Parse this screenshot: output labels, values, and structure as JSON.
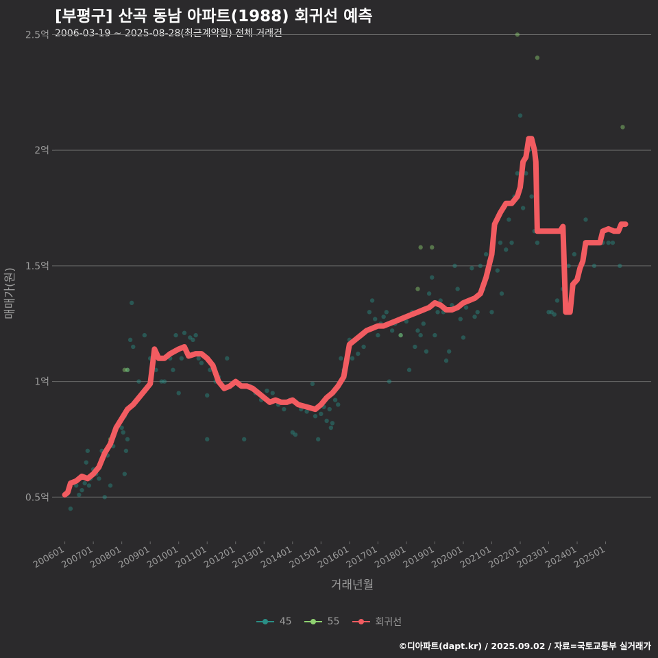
{
  "title": "[부평구] 산곡 동남 아파트(1988) 회귀선 예측",
  "subtitle": "2006-03-19 ~ 2025-08-28(최근계약일) 전체 거래건",
  "caption": "©디아파트(dapt.kr) / 2025.09.02 / 자료=국토교통부 실거래가",
  "colors": {
    "background": "#2b2a2c",
    "grid": "#6a6a6a",
    "s45": "#2a8f86",
    "s55": "#8fd171",
    "regression": "#f25c61"
  },
  "chart_data": {
    "type": "scatter",
    "title": "[부평구] 산곡 동남 아파트(1988) 회귀선 예측",
    "xlabel": "거래년월",
    "ylabel": "매매가(원)",
    "xlim": [
      2005.6,
      2026.6
    ],
    "ylim": [
      0.32,
      2.62
    ],
    "y_ticks": [
      0.5,
      1.0,
      1.5,
      2.0,
      2.5
    ],
    "y_tick_labels": [
      "0.5억",
      "1억",
      "1.5억",
      "2억",
      "2.5억"
    ],
    "x_ticks": [
      2006,
      2007,
      2008,
      2009,
      2010,
      2011,
      2012,
      2013,
      2014,
      2015,
      2016,
      2017,
      2018,
      2019,
      2020,
      2021,
      2022,
      2023,
      2024,
      2025
    ],
    "x_tick_labels": [
      "200601",
      "200701",
      "200801",
      "200901",
      "201001",
      "201101",
      "201201",
      "201301",
      "201401",
      "201501",
      "201601",
      "201701",
      "201801",
      "201901",
      "202001",
      "202101",
      "202201",
      "202301",
      "202401",
      "202501"
    ],
    "legend": [
      {
        "name": "45",
        "color": "#2a8f86"
      },
      {
        "name": "55",
        "color": "#8fd171"
      },
      {
        "name": "회귀선",
        "color": "#f25c61"
      }
    ],
    "series": [
      {
        "name": "45",
        "points": [
          [
            2006.1,
            0.52
          ],
          [
            2006.2,
            0.45
          ],
          [
            2006.4,
            0.55
          ],
          [
            2006.5,
            0.51
          ],
          [
            2006.6,
            0.53
          ],
          [
            2006.7,
            0.56
          ],
          [
            2006.75,
            0.65
          ],
          [
            2006.8,
            0.7
          ],
          [
            2006.85,
            0.55
          ],
          [
            2006.9,
            0.58
          ],
          [
            2007.0,
            0.62
          ],
          [
            2007.1,
            0.6
          ],
          [
            2007.2,
            0.58
          ],
          [
            2007.3,
            0.7
          ],
          [
            2007.4,
            0.5
          ],
          [
            2007.5,
            0.68
          ],
          [
            2007.6,
            0.55
          ],
          [
            2007.7,
            0.72
          ],
          [
            2007.8,
            0.8
          ],
          [
            2007.9,
            0.82
          ],
          [
            2008.0,
            0.8
          ],
          [
            2008.05,
            0.78
          ],
          [
            2008.1,
            0.85
          ],
          [
            2008.15,
            0.7
          ],
          [
            2008.2,
            0.75
          ],
          [
            2008.3,
            1.18
          ],
          [
            2008.35,
            1.34
          ],
          [
            2008.4,
            1.15
          ],
          [
            2008.1,
            0.6
          ],
          [
            2008.2,
            1.05
          ],
          [
            2008.6,
            1.0
          ],
          [
            2008.7,
            0.95
          ],
          [
            2008.8,
            1.2
          ],
          [
            2009.0,
            1.1
          ],
          [
            2009.2,
            1.05
          ],
          [
            2009.4,
            1.0
          ],
          [
            2009.5,
            1.0
          ],
          [
            2009.7,
            1.1
          ],
          [
            2009.8,
            1.05
          ],
          [
            2009.9,
            1.2
          ],
          [
            2010.0,
            0.95
          ],
          [
            2010.1,
            1.1
          ],
          [
            2010.2,
            1.21
          ],
          [
            2010.3,
            1.12
          ],
          [
            2010.4,
            1.19
          ],
          [
            2010.5,
            1.18
          ],
          [
            2010.6,
            1.2
          ],
          [
            2010.7,
            1.1
          ],
          [
            2010.8,
            1.08
          ],
          [
            2011.0,
            0.75
          ],
          [
            2011.0,
            0.94
          ],
          [
            2011.1,
            1.05
          ],
          [
            2011.3,
            1.0
          ],
          [
            2011.4,
            1.02
          ],
          [
            2011.7,
            1.1
          ],
          [
            2011.8,
            0.98
          ],
          [
            2012.3,
            0.75
          ],
          [
            2012.5,
            0.98
          ],
          [
            2012.7,
            0.95
          ],
          [
            2012.9,
            0.92
          ],
          [
            2013.1,
            0.96
          ],
          [
            2013.3,
            0.95
          ],
          [
            2013.5,
            0.9
          ],
          [
            2013.7,
            0.88
          ],
          [
            2013.9,
            0.92
          ],
          [
            2014.0,
            0.78
          ],
          [
            2014.1,
            0.77
          ],
          [
            2014.3,
            0.88
          ],
          [
            2014.5,
            0.87
          ],
          [
            2014.7,
            0.99
          ],
          [
            2014.8,
            0.85
          ],
          [
            2014.9,
            0.75
          ],
          [
            2015.0,
            0.86
          ],
          [
            2015.1,
            0.89
          ],
          [
            2015.2,
            0.83
          ],
          [
            2015.3,
            0.88
          ],
          [
            2015.35,
            0.8
          ],
          [
            2015.4,
            0.82
          ],
          [
            2015.5,
            0.92
          ],
          [
            2015.6,
            0.9
          ],
          [
            2015.7,
            1.1
          ],
          [
            2015.8,
            1.05
          ],
          [
            2016.0,
            1.18
          ],
          [
            2016.1,
            1.1
          ],
          [
            2016.3,
            1.12
          ],
          [
            2016.5,
            1.15
          ],
          [
            2016.7,
            1.3
          ],
          [
            2016.8,
            1.35
          ],
          [
            2016.9,
            1.27
          ],
          [
            2017.0,
            1.2
          ],
          [
            2017.1,
            1.25
          ],
          [
            2017.2,
            1.28
          ],
          [
            2017.3,
            1.3
          ],
          [
            2017.4,
            1.0
          ],
          [
            2017.5,
            1.22
          ],
          [
            2017.6,
            1.25
          ],
          [
            2017.8,
            1.2
          ],
          [
            2018.0,
            1.26
          ],
          [
            2018.1,
            1.05
          ],
          [
            2018.2,
            1.3
          ],
          [
            2018.3,
            1.15
          ],
          [
            2018.4,
            1.22
          ],
          [
            2018.5,
            1.2
          ],
          [
            2018.6,
            1.25
          ],
          [
            2018.7,
            1.13
          ],
          [
            2018.8,
            1.38
          ],
          [
            2018.9,
            1.45
          ],
          [
            2019.0,
            1.2
          ],
          [
            2019.1,
            1.3
          ],
          [
            2019.2,
            1.35
          ],
          [
            2019.3,
            1.3
          ],
          [
            2019.4,
            1.09
          ],
          [
            2019.5,
            1.13
          ],
          [
            2019.6,
            1.33
          ],
          [
            2019.7,
            1.5
          ],
          [
            2019.8,
            1.4
          ],
          [
            2019.9,
            1.27
          ],
          [
            2020.0,
            1.19
          ],
          [
            2020.1,
            1.32
          ],
          [
            2020.2,
            1.35
          ],
          [
            2020.3,
            1.49
          ],
          [
            2020.4,
            1.28
          ],
          [
            2020.5,
            1.3
          ],
          [
            2020.6,
            1.5
          ],
          [
            2020.7,
            1.4
          ],
          [
            2020.8,
            1.55
          ],
          [
            2020.9,
            1.52
          ],
          [
            2021.0,
            1.3
          ],
          [
            2021.2,
            1.48
          ],
          [
            2021.3,
            1.6
          ],
          [
            2021.35,
            1.38
          ],
          [
            2021.5,
            1.57
          ],
          [
            2021.6,
            1.7
          ],
          [
            2021.7,
            1.6
          ],
          [
            2021.8,
            1.8
          ],
          [
            2021.9,
            1.9
          ],
          [
            2022.0,
            2.15
          ],
          [
            2022.1,
            1.75
          ],
          [
            2022.2,
            1.9
          ],
          [
            2022.3,
            2.0
          ],
          [
            2022.4,
            1.8
          ],
          [
            2022.5,
            1.65
          ],
          [
            2022.6,
            1.6
          ],
          [
            2022.8,
            1.65
          ],
          [
            2023.0,
            1.3
          ],
          [
            2023.1,
            1.3
          ],
          [
            2023.2,
            1.29
          ],
          [
            2023.3,
            1.35
          ],
          [
            2023.5,
            1.4
          ],
          [
            2023.7,
            1.5
          ],
          [
            2023.9,
            1.55
          ],
          [
            2024.3,
            1.7
          ],
          [
            2024.6,
            1.5
          ],
          [
            2024.9,
            1.6
          ],
          [
            2025.1,
            1.6
          ],
          [
            2025.25,
            1.6
          ],
          [
            2025.5,
            1.5
          ]
        ]
      },
      {
        "name": "55",
        "points": [
          [
            2007.6,
            0.75
          ],
          [
            2008.1,
            1.05
          ],
          [
            2008.2,
            1.05
          ],
          [
            2017.8,
            1.2
          ],
          [
            2018.4,
            1.4
          ],
          [
            2018.5,
            1.58
          ],
          [
            2018.9,
            1.58
          ],
          [
            2021.9,
            2.5
          ],
          [
            2022.6,
            2.4
          ],
          [
            2025.6,
            2.1
          ]
        ]
      },
      {
        "name": "회귀선",
        "points": [
          [
            2006.0,
            0.51
          ],
          [
            2006.1,
            0.52
          ],
          [
            2006.2,
            0.56
          ],
          [
            2006.4,
            0.57
          ],
          [
            2006.6,
            0.59
          ],
          [
            2006.8,
            0.58
          ],
          [
            2007.0,
            0.6
          ],
          [
            2007.2,
            0.63
          ],
          [
            2007.4,
            0.69
          ],
          [
            2007.6,
            0.73
          ],
          [
            2007.8,
            0.8
          ],
          [
            2008.0,
            0.84
          ],
          [
            2008.2,
            0.88
          ],
          [
            2008.4,
            0.9
          ],
          [
            2008.6,
            0.93
          ],
          [
            2008.8,
            0.96
          ],
          [
            2009.0,
            0.99
          ],
          [
            2009.15,
            1.14
          ],
          [
            2009.3,
            1.1
          ],
          [
            2009.5,
            1.1
          ],
          [
            2009.7,
            1.12
          ],
          [
            2010.0,
            1.14
          ],
          [
            2010.2,
            1.15
          ],
          [
            2010.35,
            1.11
          ],
          [
            2010.6,
            1.12
          ],
          [
            2010.8,
            1.12
          ],
          [
            2011.0,
            1.1
          ],
          [
            2011.2,
            1.07
          ],
          [
            2011.4,
            1.0
          ],
          [
            2011.6,
            0.97
          ],
          [
            2011.8,
            0.98
          ],
          [
            2012.0,
            1.0
          ],
          [
            2012.2,
            0.98
          ],
          [
            2012.4,
            0.98
          ],
          [
            2012.6,
            0.97
          ],
          [
            2012.8,
            0.95
          ],
          [
            2013.0,
            0.93
          ],
          [
            2013.2,
            0.91
          ],
          [
            2013.4,
            0.92
          ],
          [
            2013.6,
            0.91
          ],
          [
            2013.8,
            0.91
          ],
          [
            2014.0,
            0.92
          ],
          [
            2014.2,
            0.9
          ],
          [
            2014.5,
            0.89
          ],
          [
            2014.8,
            0.88
          ],
          [
            2015.0,
            0.9
          ],
          [
            2015.2,
            0.93
          ],
          [
            2015.4,
            0.95
          ],
          [
            2015.6,
            0.98
          ],
          [
            2015.8,
            1.02
          ],
          [
            2016.0,
            1.16
          ],
          [
            2016.2,
            1.18
          ],
          [
            2016.4,
            1.2
          ],
          [
            2016.6,
            1.22
          ],
          [
            2016.8,
            1.23
          ],
          [
            2017.0,
            1.24
          ],
          [
            2017.2,
            1.24
          ],
          [
            2017.4,
            1.25
          ],
          [
            2017.6,
            1.26
          ],
          [
            2017.8,
            1.27
          ],
          [
            2018.0,
            1.28
          ],
          [
            2018.2,
            1.29
          ],
          [
            2018.4,
            1.3
          ],
          [
            2018.6,
            1.31
          ],
          [
            2018.8,
            1.32
          ],
          [
            2019.0,
            1.34
          ],
          [
            2019.2,
            1.33
          ],
          [
            2019.4,
            1.31
          ],
          [
            2019.6,
            1.31
          ],
          [
            2019.8,
            1.32
          ],
          [
            2020.0,
            1.34
          ],
          [
            2020.2,
            1.35
          ],
          [
            2020.4,
            1.36
          ],
          [
            2020.6,
            1.38
          ],
          [
            2020.8,
            1.45
          ],
          [
            2021.0,
            1.55
          ],
          [
            2021.1,
            1.68
          ],
          [
            2021.3,
            1.73
          ],
          [
            2021.5,
            1.77
          ],
          [
            2021.7,
            1.77
          ],
          [
            2021.9,
            1.8
          ],
          [
            2022.0,
            1.84
          ],
          [
            2022.1,
            1.95
          ],
          [
            2022.2,
            1.97
          ],
          [
            2022.3,
            2.05
          ],
          [
            2022.4,
            2.05
          ],
          [
            2022.5,
            2.0
          ],
          [
            2022.55,
            1.95
          ],
          [
            2022.6,
            1.65
          ],
          [
            2022.8,
            1.65
          ],
          [
            2023.2,
            1.65
          ],
          [
            2023.4,
            1.65
          ],
          [
            2023.5,
            1.67
          ],
          [
            2023.6,
            1.3
          ],
          [
            2023.75,
            1.3
          ],
          [
            2023.85,
            1.42
          ],
          [
            2024.0,
            1.44
          ],
          [
            2024.1,
            1.49
          ],
          [
            2024.2,
            1.52
          ],
          [
            2024.3,
            1.6
          ],
          [
            2024.5,
            1.6
          ],
          [
            2024.8,
            1.6
          ],
          [
            2024.9,
            1.65
          ],
          [
            2025.1,
            1.66
          ],
          [
            2025.3,
            1.65
          ],
          [
            2025.45,
            1.65
          ],
          [
            2025.55,
            1.68
          ],
          [
            2025.7,
            1.68
          ]
        ]
      }
    ]
  }
}
